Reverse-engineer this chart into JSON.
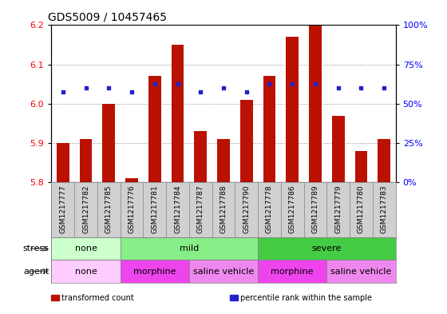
{
  "title": "GDS5009 / 10457465",
  "samples": [
    "GSM1217777",
    "GSM1217782",
    "GSM1217785",
    "GSM1217776",
    "GSM1217781",
    "GSM1217784",
    "GSM1217787",
    "GSM1217788",
    "GSM1217790",
    "GSM1217778",
    "GSM1217786",
    "GSM1217789",
    "GSM1217779",
    "GSM1217780",
    "GSM1217783"
  ],
  "bar_values": [
    5.9,
    5.91,
    6.0,
    5.81,
    6.07,
    6.15,
    5.93,
    5.91,
    6.01,
    6.07,
    6.17,
    6.2,
    5.97,
    5.88,
    5.91
  ],
  "percentile_values": [
    6.03,
    6.04,
    6.04,
    6.03,
    6.05,
    6.05,
    6.03,
    6.04,
    6.03,
    6.05,
    6.05,
    6.05,
    6.04,
    6.04,
    6.04
  ],
  "bar_bottom": 5.8,
  "ylim_left": [
    5.8,
    6.2
  ],
  "ylim_right": [
    0,
    100
  ],
  "yticks_left": [
    5.8,
    5.9,
    6.0,
    6.1,
    6.2
  ],
  "yticks_right": [
    0,
    25,
    50,
    75,
    100
  ],
  "ytick_labels_right": [
    "0%",
    "25%",
    "50%",
    "75%",
    "100%"
  ],
  "bar_color": "#BB1100",
  "percentile_color": "#2222CC",
  "grid_color": "#888888",
  "xtick_bg": "#D0D0D0",
  "stress_groups": [
    {
      "label": "none",
      "start": 0,
      "end": 3,
      "color": "#CCFFCC"
    },
    {
      "label": "mild",
      "start": 3,
      "end": 9,
      "color": "#88EE88"
    },
    {
      "label": "severe",
      "start": 9,
      "end": 15,
      "color": "#44CC44"
    }
  ],
  "agent_groups": [
    {
      "label": "none",
      "start": 0,
      "end": 3,
      "color": "#FFCCFF"
    },
    {
      "label": "morphine",
      "start": 3,
      "end": 6,
      "color": "#EE44EE"
    },
    {
      "label": "saline vehicle",
      "start": 6,
      "end": 9,
      "color": "#EE88EE"
    },
    {
      "label": "morphine",
      "start": 9,
      "end": 12,
      "color": "#EE44EE"
    },
    {
      "label": "saline vehicle",
      "start": 12,
      "end": 15,
      "color": "#EE88EE"
    }
  ],
  "stress_label": "stress",
  "agent_label": "agent",
  "legend_items": [
    {
      "label": "transformed count",
      "color": "#BB1100"
    },
    {
      "label": "percentile rank within the sample",
      "color": "#2222CC"
    }
  ],
  "bar_width": 0.55,
  "bg_color": "#FFFFFF",
  "plot_bg_color": "#FFFFFF",
  "title_fontsize": 10,
  "tick_fontsize": 6.5,
  "label_fontsize": 8,
  "row_label_fontsize": 8
}
